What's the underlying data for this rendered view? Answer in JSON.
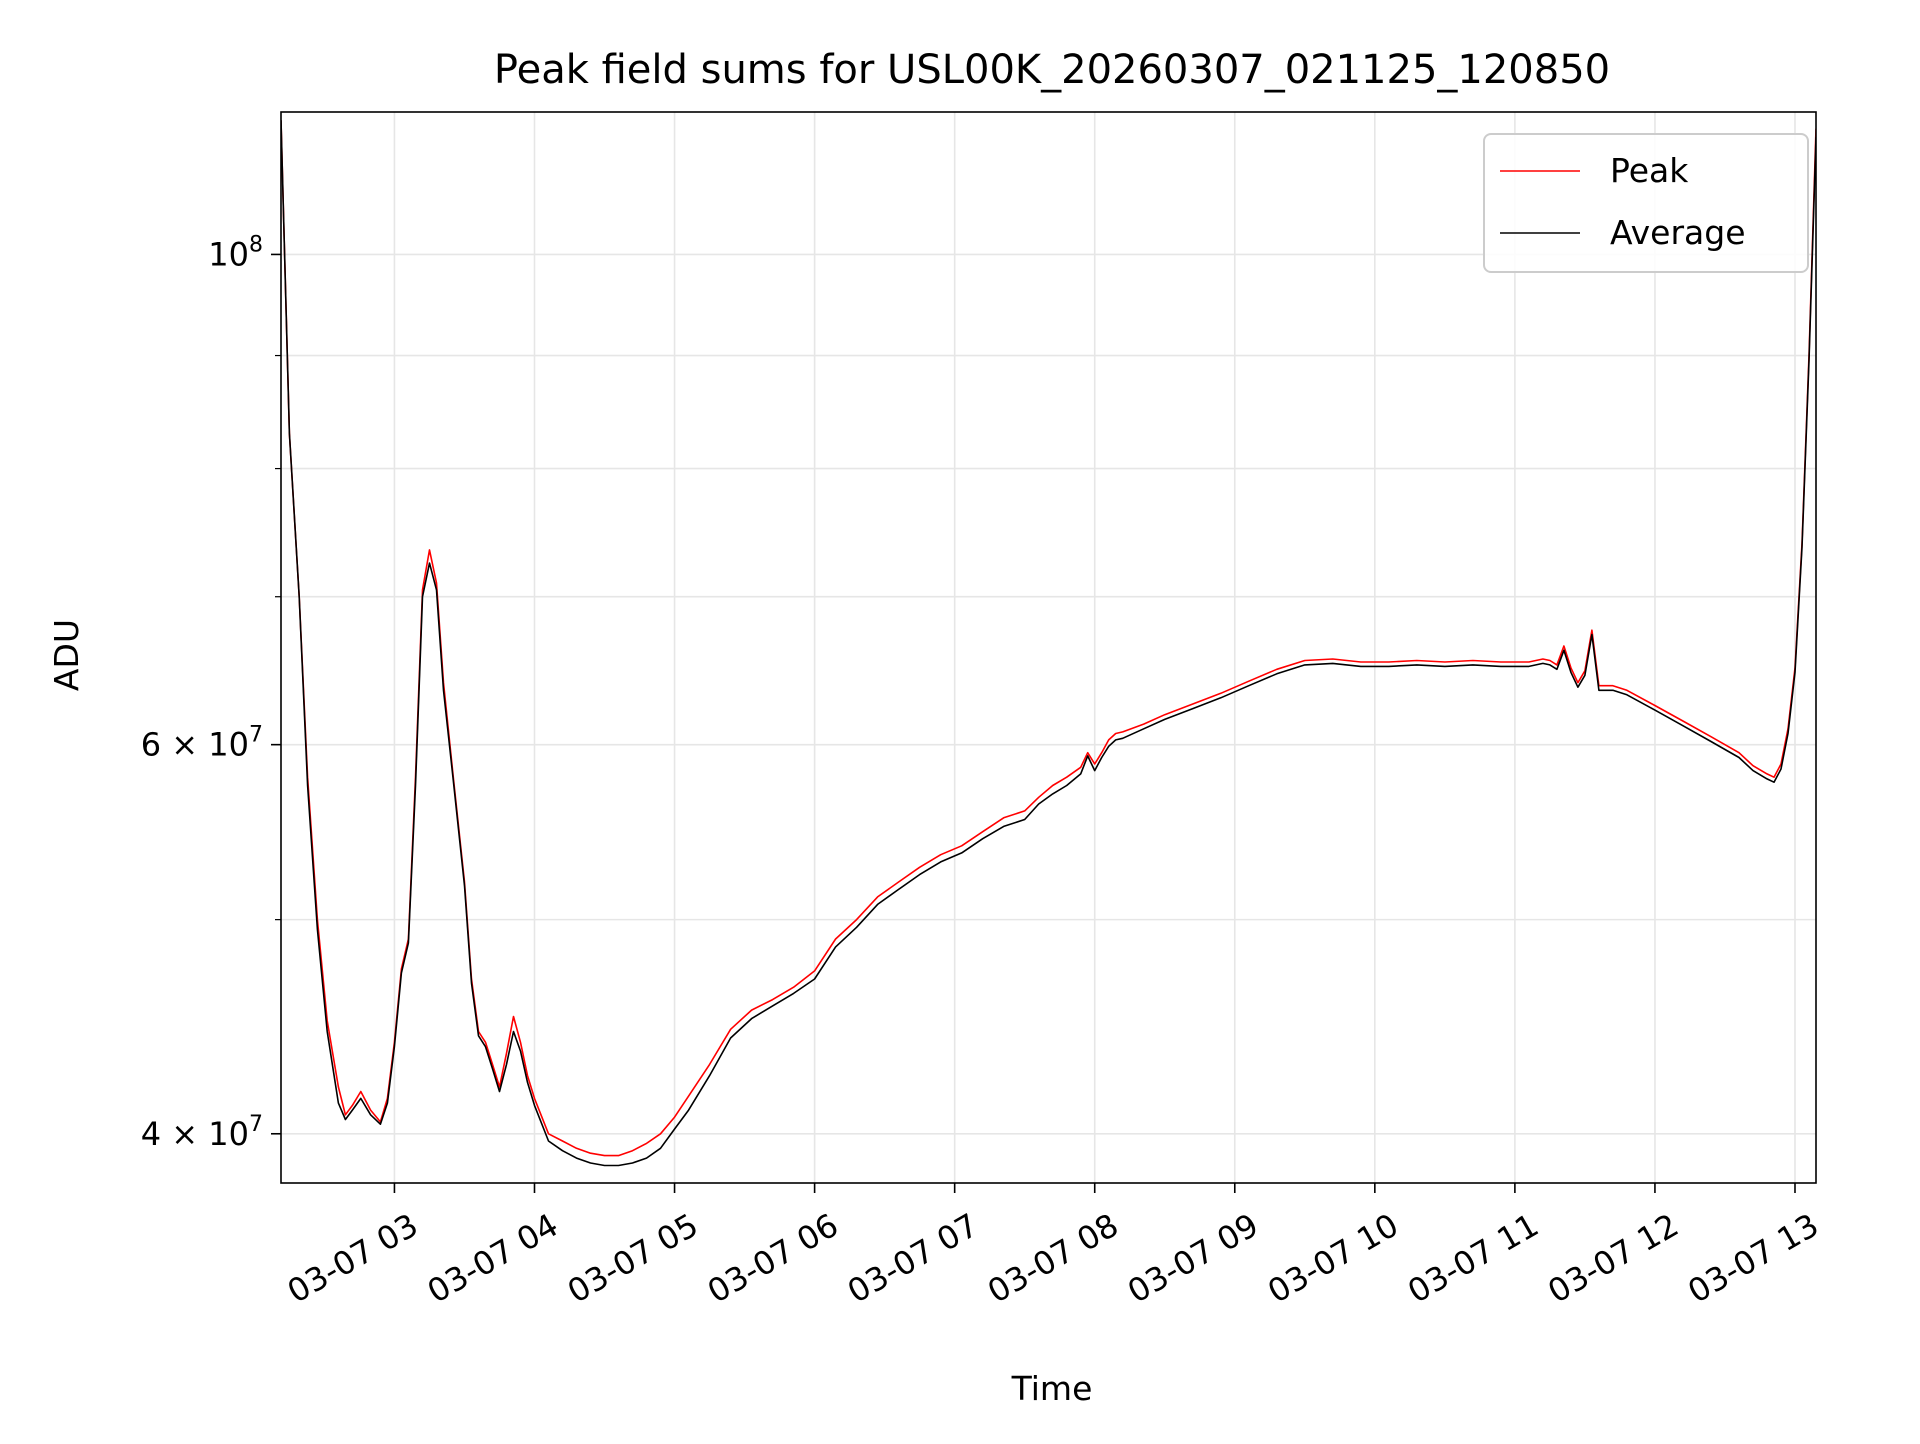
{
  "chart_data": {
    "type": "line",
    "title": "Peak field sums for USL00K_20260307_021125_120850",
    "xlabel": "Time",
    "ylabel": "ADU",
    "x_unit": "hours (time of day on 2026-03-07)",
    "xlim": [
      2.19,
      13.15
    ],
    "ylim": [
      38000000,
      116000000
    ],
    "yscale": "log",
    "grid": true,
    "legend_position": "top-right",
    "x_ticks": [
      {
        "value": 3,
        "label": "03-07 03"
      },
      {
        "value": 4,
        "label": "03-07 04"
      },
      {
        "value": 5,
        "label": "03-07 05"
      },
      {
        "value": 6,
        "label": "03-07 06"
      },
      {
        "value": 7,
        "label": "03-07 07"
      },
      {
        "value": 8,
        "label": "03-07 08"
      },
      {
        "value": 9,
        "label": "03-07 09"
      },
      {
        "value": 10,
        "label": "03-07 10"
      },
      {
        "value": 11,
        "label": "03-07 11"
      },
      {
        "value": 12,
        "label": "03-07 12"
      },
      {
        "value": 13,
        "label": "03-07 13"
      }
    ],
    "y_ticks_major": [
      {
        "value": 40000000,
        "base": "4 × 10",
        "exp": "7"
      },
      {
        "value": 60000000,
        "base": "6 × 10",
        "exp": "7"
      },
      {
        "value": 100000000,
        "base": "10",
        "exp": "8"
      }
    ],
    "y_ticks_minor": [
      50000000,
      70000000,
      80000000,
      90000000
    ],
    "series": [
      {
        "name": "Peak",
        "color": "#ff0000",
        "x": [
          2.19,
          2.25,
          2.32,
          2.38,
          2.45,
          2.52,
          2.6,
          2.65,
          2.7,
          2.76,
          2.83,
          2.9,
          2.95,
          3.0,
          3.05,
          3.1,
          3.15,
          3.2,
          3.25,
          3.3,
          3.35,
          3.42,
          3.5,
          3.55,
          3.6,
          3.65,
          3.7,
          3.75,
          3.8,
          3.85,
          3.9,
          3.95,
          4.0,
          4.1,
          4.2,
          4.3,
          4.4,
          4.5,
          4.6,
          4.7,
          4.8,
          4.9,
          5.0,
          5.1,
          5.25,
          5.4,
          5.55,
          5.7,
          5.85,
          6.0,
          6.15,
          6.3,
          6.45,
          6.6,
          6.75,
          6.9,
          7.05,
          7.2,
          7.35,
          7.5,
          7.6,
          7.7,
          7.8,
          7.9,
          7.95,
          8.0,
          8.05,
          8.1,
          8.15,
          8.2,
          8.35,
          8.5,
          8.7,
          8.9,
          9.1,
          9.3,
          9.5,
          9.7,
          9.9,
          10.1,
          10.3,
          10.5,
          10.7,
          10.9,
          11.1,
          11.2,
          11.25,
          11.3,
          11.35,
          11.4,
          11.45,
          11.5,
          11.55,
          11.6,
          11.7,
          11.8,
          12.0,
          12.2,
          12.4,
          12.6,
          12.7,
          12.8,
          12.85,
          12.9,
          12.95,
          13.0,
          13.05,
          13.1,
          13.15
        ],
        "y": [
          115000000,
          83000000,
          70000000,
          58000000,
          50000000,
          45000000,
          42000000,
          40800000,
          41200000,
          41800000,
          41000000,
          40500000,
          41500000,
          44000000,
          47500000,
          49000000,
          58000000,
          70500000,
          73500000,
          71000000,
          64000000,
          58000000,
          52000000,
          47000000,
          44500000,
          44000000,
          43000000,
          42000000,
          43500000,
          45200000,
          44000000,
          42500000,
          41500000,
          40000000,
          39700000,
          39400000,
          39200000,
          39100000,
          39100000,
          39300000,
          39600000,
          40000000,
          40700000,
          41600000,
          43000000,
          44600000,
          45500000,
          46000000,
          46600000,
          47400000,
          49000000,
          50000000,
          51200000,
          52000000,
          52800000,
          53500000,
          54000000,
          54800000,
          55600000,
          56000000,
          56800000,
          57500000,
          58000000,
          58600000,
          59500000,
          58800000,
          59500000,
          60300000,
          60700000,
          60800000,
          61300000,
          61900000,
          62600000,
          63300000,
          64100000,
          64900000,
          65500000,
          65600000,
          65400000,
          65400000,
          65500000,
          65400000,
          65500000,
          65400000,
          65400000,
          65600000,
          65500000,
          65200000,
          66500000,
          65000000,
          64000000,
          64800000,
          67600000,
          63800000,
          63800000,
          63500000,
          62500000,
          61500000,
          60500000,
          59500000,
          58700000,
          58200000,
          58000000,
          58800000,
          61000000,
          65000000,
          74000000,
          90000000,
          114000000
        ]
      },
      {
        "name": "Average",
        "color": "#000000",
        "x": [
          2.19,
          2.25,
          2.32,
          2.38,
          2.45,
          2.52,
          2.6,
          2.65,
          2.7,
          2.76,
          2.83,
          2.9,
          2.95,
          3.0,
          3.05,
          3.1,
          3.15,
          3.2,
          3.25,
          3.3,
          3.35,
          3.42,
          3.5,
          3.55,
          3.6,
          3.65,
          3.7,
          3.75,
          3.8,
          3.85,
          3.9,
          3.95,
          4.0,
          4.1,
          4.2,
          4.3,
          4.4,
          4.5,
          4.6,
          4.7,
          4.8,
          4.9,
          5.0,
          5.1,
          5.25,
          5.4,
          5.55,
          5.7,
          5.85,
          6.0,
          6.15,
          6.3,
          6.45,
          6.6,
          6.75,
          6.9,
          7.05,
          7.2,
          7.35,
          7.5,
          7.6,
          7.7,
          7.8,
          7.9,
          7.95,
          8.0,
          8.05,
          8.1,
          8.15,
          8.2,
          8.35,
          8.5,
          8.7,
          8.9,
          9.1,
          9.3,
          9.5,
          9.7,
          9.9,
          10.1,
          10.3,
          10.5,
          10.7,
          10.9,
          11.1,
          11.2,
          11.25,
          11.3,
          11.35,
          11.4,
          11.45,
          11.5,
          11.55,
          11.6,
          11.7,
          11.8,
          12.0,
          12.2,
          12.4,
          12.6,
          12.7,
          12.8,
          12.85,
          12.9,
          12.95,
          13.0,
          13.05,
          13.1,
          13.15
        ],
        "y": [
          115000000,
          83000000,
          70000000,
          57500000,
          49500000,
          44500000,
          41300000,
          40600000,
          41000000,
          41500000,
          40800000,
          40400000,
          41300000,
          43800000,
          47300000,
          48800000,
          57500000,
          70000000,
          72500000,
          70500000,
          63500000,
          57800000,
          51800000,
          46800000,
          44300000,
          43800000,
          42800000,
          41800000,
          43000000,
          44500000,
          43600000,
          42200000,
          41200000,
          39700000,
          39300000,
          39000000,
          38800000,
          38700000,
          38700000,
          38800000,
          39000000,
          39400000,
          40200000,
          41000000,
          42500000,
          44200000,
          45100000,
          45700000,
          46300000,
          47000000,
          48600000,
          49600000,
          50800000,
          51600000,
          52400000,
          53100000,
          53600000,
          54400000,
          55100000,
          55500000,
          56400000,
          57000000,
          57500000,
          58200000,
          59300000,
          58400000,
          59200000,
          59900000,
          60300000,
          60400000,
          61000000,
          61600000,
          62300000,
          63000000,
          63800000,
          64600000,
          65200000,
          65300000,
          65100000,
          65100000,
          65200000,
          65100000,
          65200000,
          65100000,
          65100000,
          65300000,
          65200000,
          64900000,
          66200000,
          64700000,
          63700000,
          64500000,
          67300000,
          63500000,
          63500000,
          63200000,
          62200000,
          61200000,
          60200000,
          59200000,
          58400000,
          57900000,
          57700000,
          58500000,
          60700000,
          64700000,
          73700000,
          89500000,
          113000000
        ]
      }
    ]
  }
}
